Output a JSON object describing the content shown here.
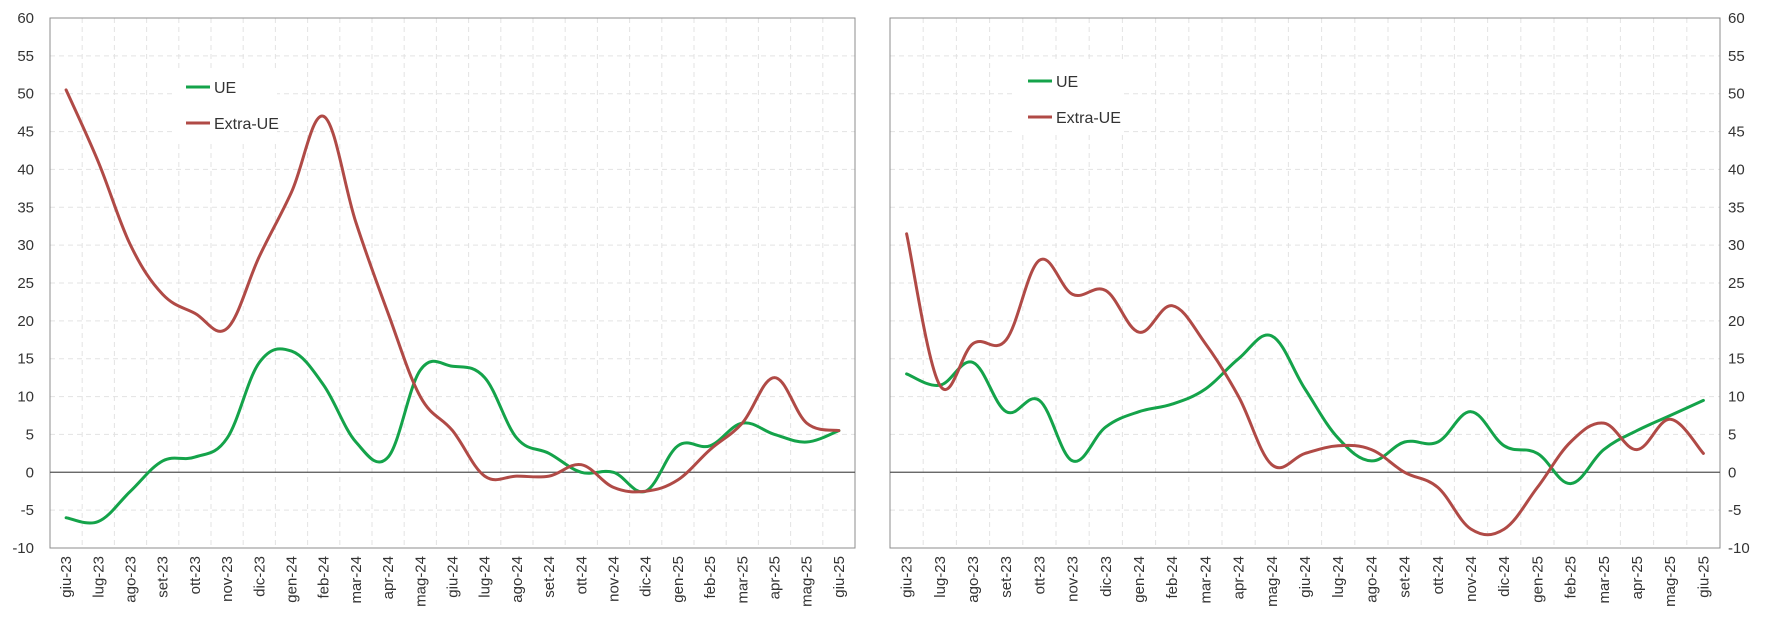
{
  "chart_data": [
    {
      "type": "line",
      "title": "",
      "xlabel": "",
      "ylabel": "",
      "ylim": [
        -10,
        60
      ],
      "yticks": [
        -10,
        -5,
        0,
        5,
        10,
        15,
        20,
        25,
        30,
        35,
        40,
        45,
        50,
        55,
        60
      ],
      "y_axis_side": "left",
      "grid": true,
      "legend_position": "top-left",
      "categories": [
        "giu-23",
        "lug-23",
        "ago-23",
        "set-23",
        "ott-23",
        "nov-23",
        "dic-23",
        "gen-24",
        "feb-24",
        "mar-24",
        "apr-24",
        "mag-24",
        "giu-24",
        "lug-24",
        "ago-24",
        "set-24",
        "ott-24",
        "nov-24",
        "dic-24",
        "gen-25",
        "feb-25",
        "mar-25",
        "apr-25",
        "mag-25",
        "giu-25"
      ],
      "series": [
        {
          "name": "UE",
          "color": "#14a34a",
          "values": [
            -6,
            -6.5,
            -2.5,
            1.5,
            2,
            4.5,
            14.5,
            16,
            11.5,
            4,
            2,
            13.5,
            14,
            12.5,
            4.5,
            2.5,
            0,
            0,
            -2.5,
            3.5,
            3.5,
            6.5,
            5,
            4,
            5.5
          ]
        },
        {
          "name": "Extra-UE",
          "color": "#b04a46",
          "values": [
            50.5,
            41,
            30,
            23.5,
            21,
            19,
            28.5,
            37,
            47,
            33,
            21,
            10,
            5.5,
            -0.5,
            -0.5,
            -0.5,
            1,
            -2,
            -2.5,
            -1,
            3,
            6.5,
            12.5,
            6.5,
            5.5
          ]
        }
      ]
    },
    {
      "type": "line",
      "title": "",
      "xlabel": "",
      "ylabel": "",
      "ylim": [
        -10,
        60
      ],
      "yticks": [
        -10,
        -5,
        0,
        5,
        10,
        15,
        20,
        25,
        30,
        35,
        40,
        45,
        50,
        55,
        60
      ],
      "y_axis_side": "right",
      "grid": true,
      "legend_position": "top-left",
      "categories": [
        "giu-23",
        "lug-23",
        "ago-23",
        "set-23",
        "ott-23",
        "nov-23",
        "dic-23",
        "gen-24",
        "feb-24",
        "mar-24",
        "apr-24",
        "mag-24",
        "giu-24",
        "lug-24",
        "ago-24",
        "set-24",
        "ott-24",
        "nov-24",
        "dic-24",
        "gen-25",
        "feb-25",
        "mar-25",
        "apr-25",
        "mag-25",
        "giu-25"
      ],
      "series": [
        {
          "name": "UE",
          "color": "#14a34a",
          "values": [
            13,
            11.5,
            14.5,
            8,
            9.5,
            1.5,
            6,
            8,
            9,
            11,
            15,
            18,
            11,
            4.5,
            1.5,
            4,
            4,
            8,
            3.5,
            2.5,
            -1.5,
            3,
            5.5,
            7.5,
            9.5
          ]
        },
        {
          "name": "Extra-UE",
          "color": "#b04a46",
          "values": [
            31.5,
            11.5,
            17,
            17.5,
            28,
            23.5,
            24,
            18.5,
            22,
            17,
            10,
            1,
            2.5,
            3.5,
            3,
            0,
            -2,
            -7.5,
            -7.5,
            -2,
            4,
            6.5,
            3,
            7,
            2.5
          ]
        }
      ]
    }
  ]
}
